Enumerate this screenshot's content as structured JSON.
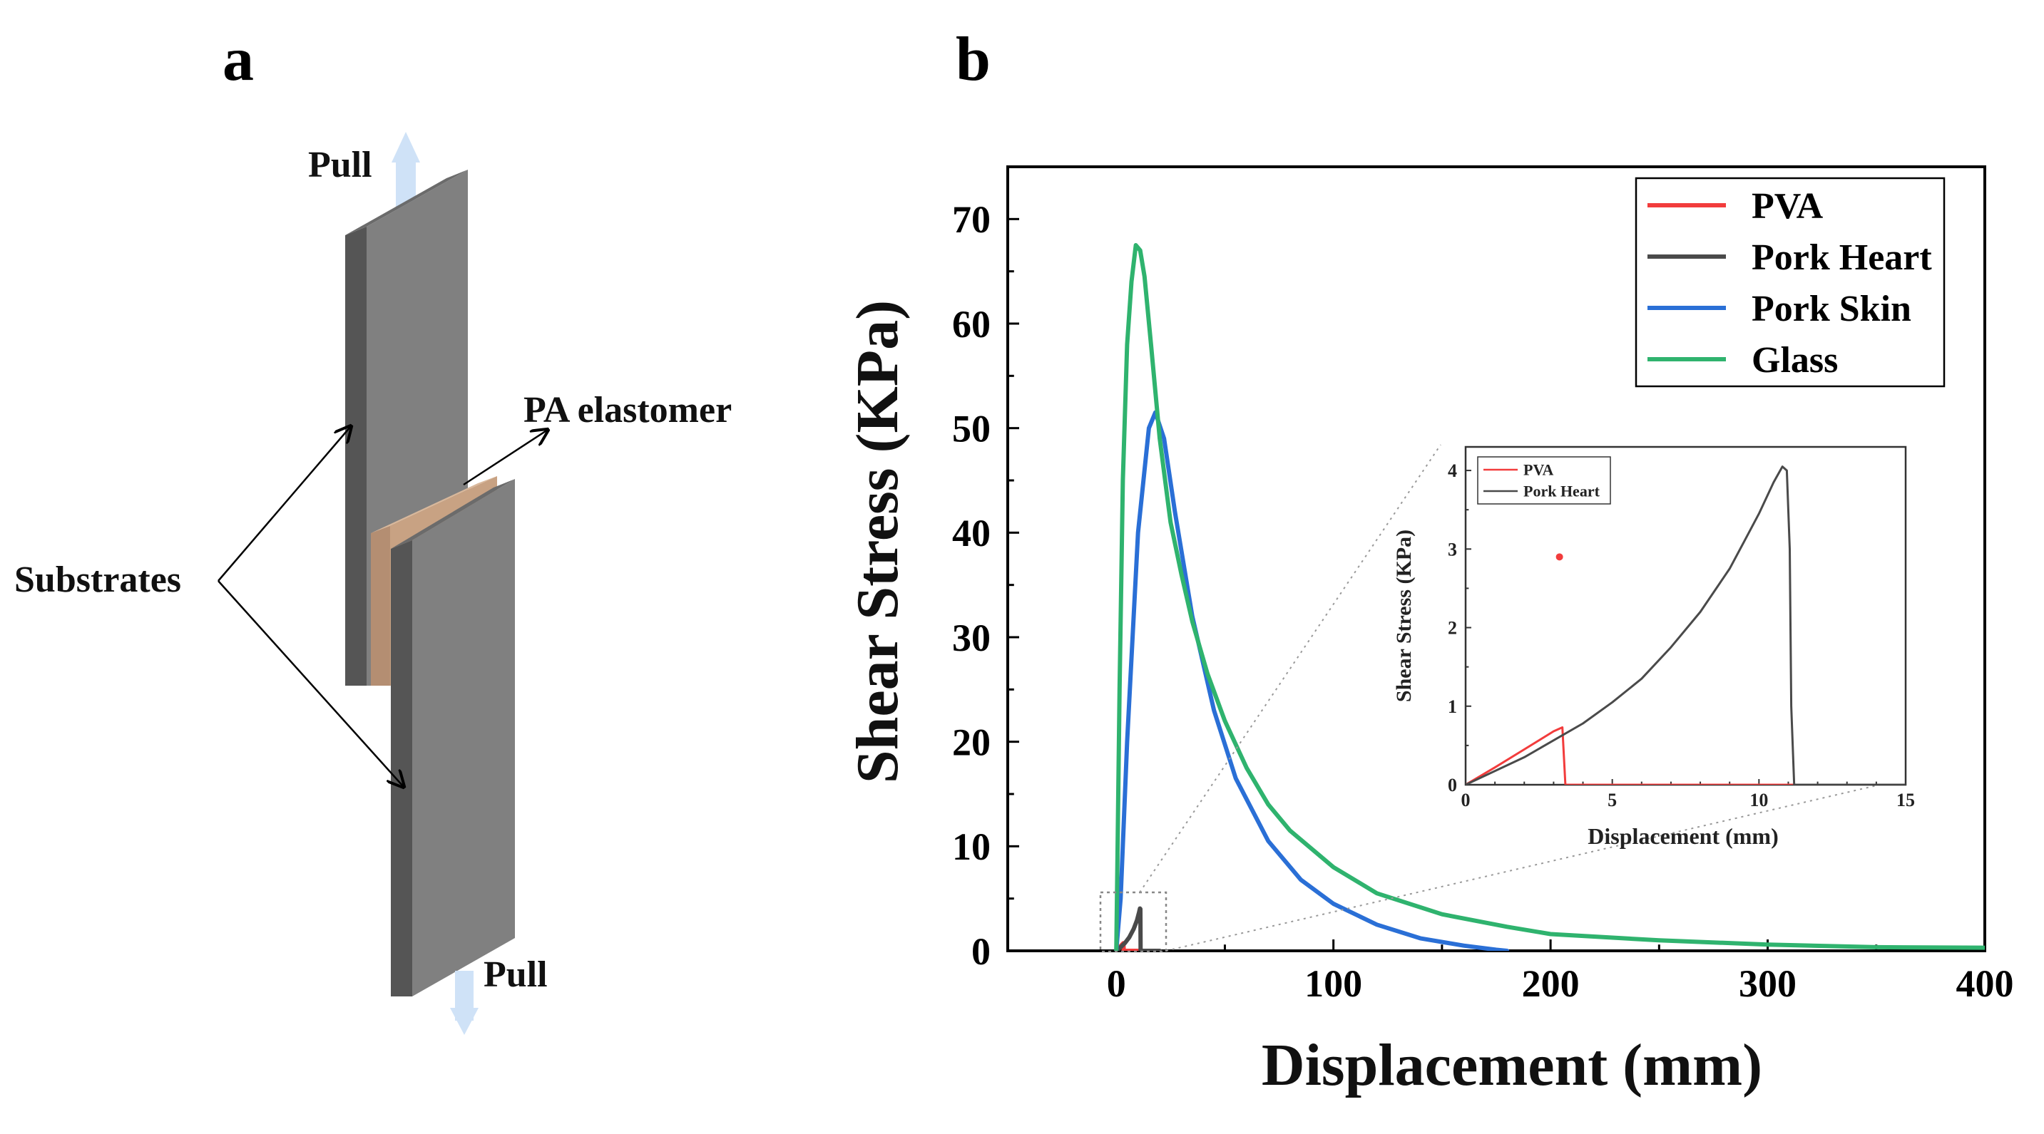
{
  "panel_a": {
    "label": "a",
    "pull_top": "Pull",
    "pull_bottom": "Pull",
    "pa_elastomer": "PA elastomer",
    "substrates": "Substrates"
  },
  "panel_b": {
    "label": "b"
  },
  "colors": {
    "pva": "#f23c3c",
    "pork_heart": "#4a4a4a",
    "pork_skin": "#2a6fd6",
    "glass": "#2fb36e"
  },
  "chart_data": [
    {
      "id": "main",
      "type": "line",
      "title": "",
      "xlabel": "Displacement (mm)",
      "ylabel": "Shear Stress (KPa)",
      "xlim": [
        -50,
        400
      ],
      "ylim": [
        0,
        75
      ],
      "xticks": [
        0,
        100,
        200,
        300,
        400
      ],
      "yticks": [
        0,
        10,
        20,
        30,
        40,
        50,
        60,
        70
      ],
      "legend": "top-right",
      "series": [
        {
          "name": "PVA",
          "color": "#f23c3c",
          "x": [
            0,
            1,
            2,
            3,
            3.3,
            3.4,
            10
          ],
          "y": [
            0,
            0.22,
            0.45,
            0.68,
            0.73,
            0,
            0
          ]
        },
        {
          "name": "Pork Heart",
          "color": "#4a4a4a",
          "x": [
            0,
            2,
            4,
            6,
            8,
            9.5,
            10.5,
            10.9,
            11.1,
            11.2,
            20
          ],
          "y": [
            0,
            0.35,
            0.75,
            1.3,
            2.1,
            2.9,
            3.7,
            4.05,
            4.0,
            0,
            0
          ]
        },
        {
          "name": "Pork Skin",
          "color": "#2a6fd6",
          "x": [
            0,
            2,
            5,
            10,
            15,
            18,
            22,
            27,
            35,
            45,
            55,
            70,
            85,
            100,
            120,
            140,
            160,
            175,
            180
          ],
          "y": [
            0,
            5,
            20,
            40,
            50,
            51.5,
            49,
            42,
            32,
            23,
            16.5,
            10.5,
            6.8,
            4.5,
            2.5,
            1.2,
            0.5,
            0.1,
            0
          ]
        },
        {
          "name": "Glass",
          "color": "#2fb36e",
          "x": [
            0,
            0.5,
            1.5,
            3,
            5,
            7,
            9,
            11,
            13,
            16,
            20,
            25,
            30,
            35,
            42,
            50,
            60,
            70,
            80,
            100,
            120,
            150,
            180,
            200,
            250,
            300,
            350,
            400
          ],
          "y": [
            0,
            8,
            25,
            45,
            58,
            64,
            67.5,
            67,
            64.5,
            58,
            49,
            41,
            36,
            31.5,
            26.5,
            22,
            17.5,
            14,
            11.5,
            8,
            5.5,
            3.5,
            2.3,
            1.6,
            1,
            0.6,
            0.35,
            0.3
          ]
        }
      ]
    },
    {
      "id": "inset",
      "type": "line",
      "title": "",
      "xlabel": "Displacement (mm)",
      "ylabel": "Shear Stress (KPa)",
      "xlim": [
        0,
        15
      ],
      "ylim": [
        0,
        4.3
      ],
      "xticks": [
        0,
        5,
        10,
        15
      ],
      "yticks": [
        0,
        1,
        2,
        3,
        4
      ],
      "legend": "top-left",
      "series": [
        {
          "name": "PVA",
          "color": "#f23c3c",
          "x": [
            0,
            1,
            2,
            3,
            3.3,
            3.4,
            15
          ],
          "y": [
            0,
            0.22,
            0.45,
            0.68,
            0.73,
            0,
            0
          ]
        },
        {
          "name": "Pork Heart",
          "color": "#4a4a4a",
          "x": [
            0,
            2,
            4,
            5,
            6,
            7,
            8,
            9,
            9.5,
            10,
            10.5,
            10.8,
            10.95,
            11.05,
            11.1,
            11.2,
            15
          ],
          "y": [
            0,
            0.35,
            0.78,
            1.05,
            1.35,
            1.75,
            2.2,
            2.75,
            3.1,
            3.45,
            3.85,
            4.05,
            4.0,
            3.0,
            1.0,
            0,
            0
          ]
        }
      ],
      "annotations": [
        {
          "type": "point",
          "x": 3.2,
          "y": 2.9,
          "color": "#f23c3c"
        }
      ]
    }
  ]
}
